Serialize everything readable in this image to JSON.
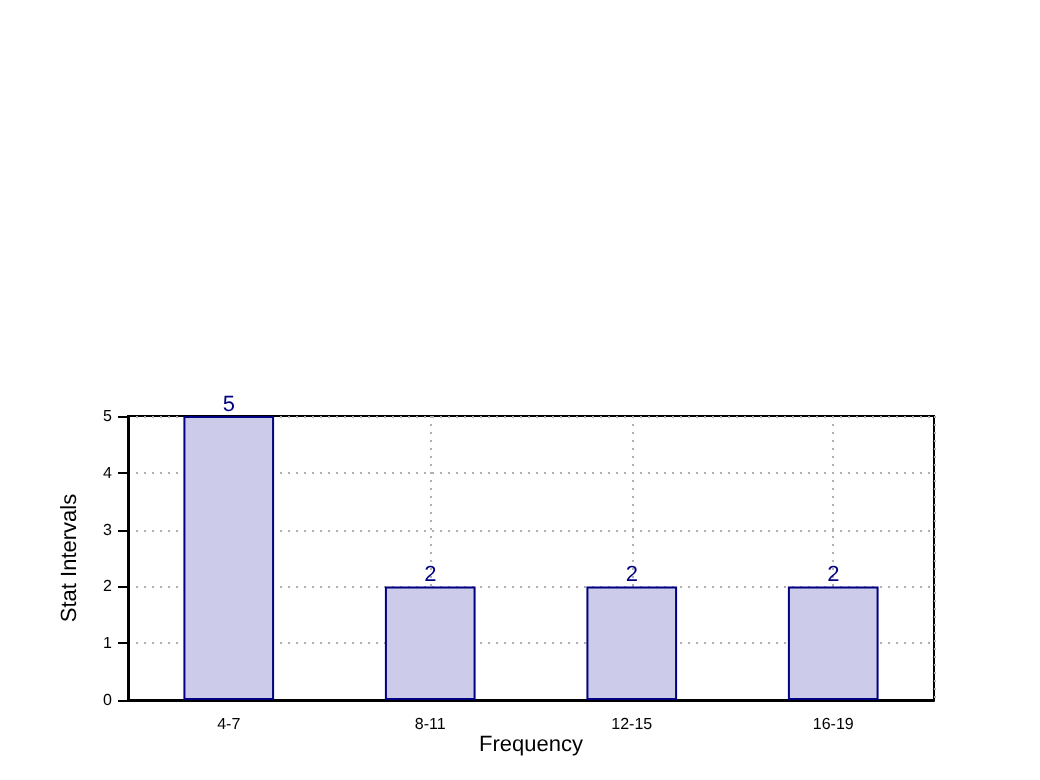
{
  "chart_data": {
    "type": "bar",
    "xlabel": "Frequency",
    "ylabel": "Stat Intervals",
    "categories": [
      "4-7",
      "8-11",
      "12-15",
      "16-19"
    ],
    "values": [
      5,
      2,
      2,
      2
    ],
    "color": "#ccccea",
    "ylim": [
      0,
      5
    ],
    "yticks": [
      0,
      1,
      2,
      3,
      4,
      5
    ],
    "grid": true,
    "data_labels": true
  }
}
